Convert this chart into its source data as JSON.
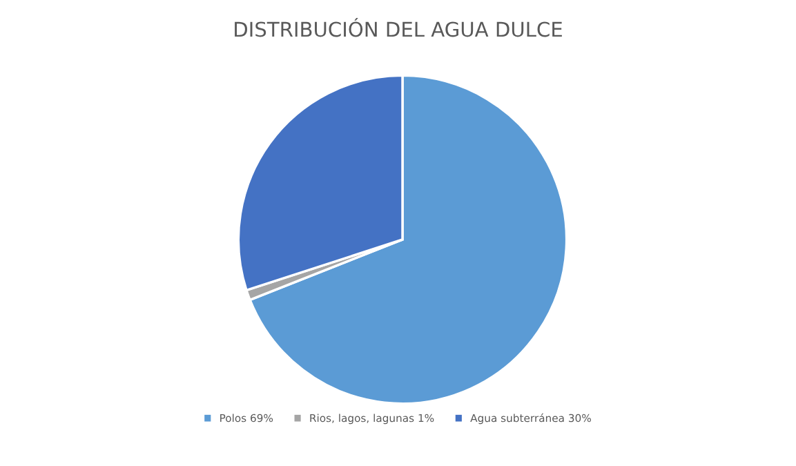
{
  "chart_data": {
    "type": "pie",
    "title": "DISTRIBUCIÓN DEL AGUA DULCE",
    "categories": [
      "Polos 69%",
      "Rios, lagos, lagunas 1%",
      "Agua subterránea 30%"
    ],
    "values": [
      69,
      1,
      30
    ],
    "colors": [
      "#5b9bd5",
      "#a5a5a5",
      "#4472c4"
    ],
    "legend": "bottom"
  }
}
